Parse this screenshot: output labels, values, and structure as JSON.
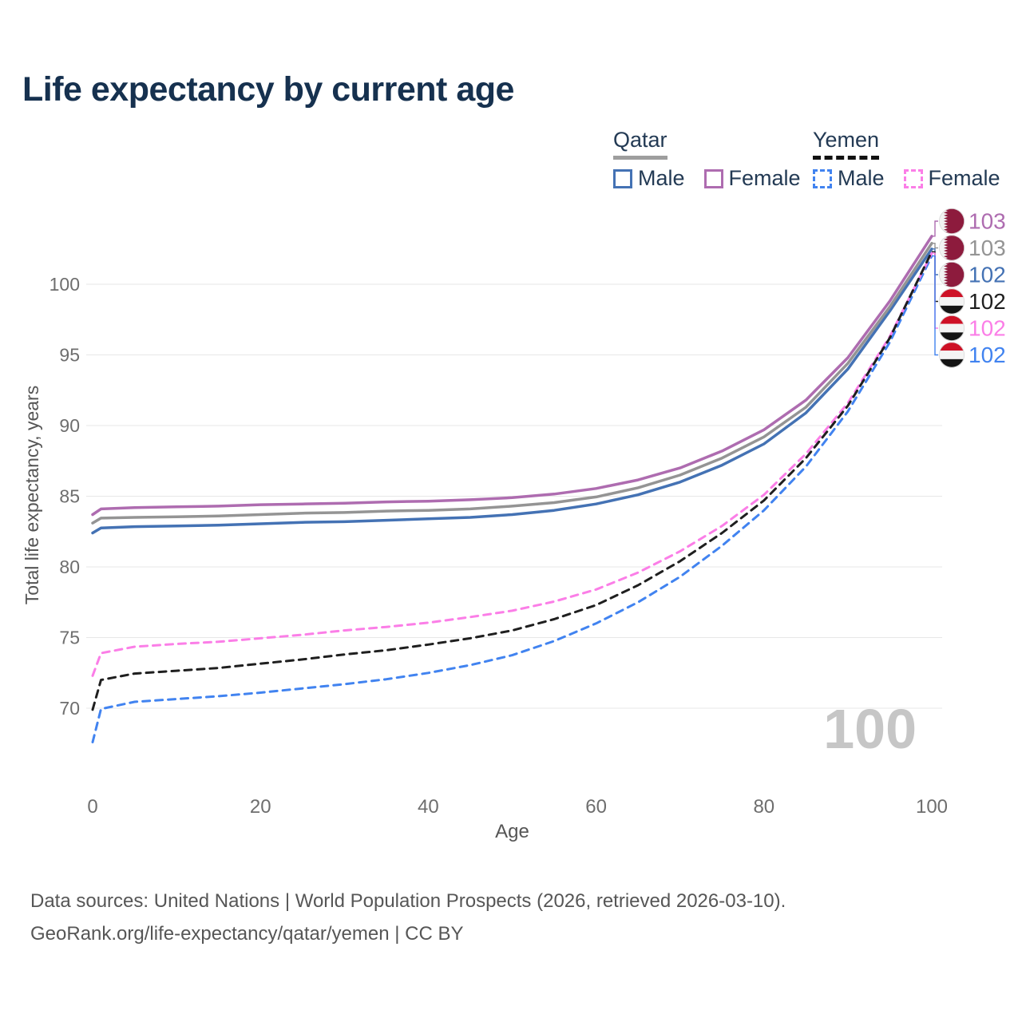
{
  "title": "Life expectancy by current age",
  "watermark": "100",
  "legend": {
    "groups": [
      {
        "country": "Qatar",
        "underline_color": "#9e9e9e",
        "style": "solid",
        "items": [
          {
            "label": "Male"
          },
          {
            "label": "Female"
          }
        ]
      },
      {
        "country": "Yemen",
        "underline_color": "#111111",
        "style": "dashed",
        "items": [
          {
            "label": "Male"
          },
          {
            "label": "Female"
          }
        ]
      }
    ]
  },
  "footer": {
    "line1": "Data sources: United Nations | World Population Prospects (2026, retrieved 2026-03-10).",
    "line2": "GeoRank.org/life-expectancy/qatar/yemen | CC BY"
  },
  "chart_data": {
    "type": "line",
    "title": "Life expectancy by current age",
    "xlabel": "Age",
    "ylabel": "Total life expectancy, years",
    "xlim": [
      0,
      100
    ],
    "ylim": [
      66,
      104
    ],
    "xticks": [
      0,
      20,
      40,
      60,
      80,
      100
    ],
    "yticks": [
      70,
      75,
      80,
      85,
      90,
      95,
      100
    ],
    "grid": true,
    "legend_position": "top-right",
    "x": [
      0,
      1,
      5,
      10,
      15,
      20,
      25,
      30,
      35,
      40,
      45,
      50,
      55,
      60,
      65,
      70,
      75,
      80,
      85,
      90,
      95,
      100
    ],
    "series": [
      {
        "name": "Qatar Male",
        "country": "Qatar",
        "sex": "male",
        "color": "#4472b4",
        "dash": false,
        "values": [
          82.4,
          82.75,
          82.85,
          82.9,
          82.95,
          83.05,
          83.15,
          83.2,
          83.3,
          83.4,
          83.5,
          83.7,
          84.0,
          84.45,
          85.1,
          86.0,
          87.2,
          88.7,
          90.9,
          94.0,
          98.1,
          102.5
        ]
      },
      {
        "name": "Qatar Female",
        "country": "Qatar",
        "sex": "female",
        "color": "#ae6cb0",
        "dash": false,
        "values": [
          83.7,
          84.1,
          84.2,
          84.25,
          84.3,
          84.4,
          84.45,
          84.5,
          84.6,
          84.65,
          84.75,
          84.9,
          85.15,
          85.55,
          86.15,
          87.0,
          88.2,
          89.7,
          91.8,
          94.8,
          98.8,
          103.4
        ]
      },
      {
        "name": "Qatar",
        "country": "Qatar",
        "sex": "all",
        "color": "#949494",
        "dash": false,
        "values": [
          83.1,
          83.45,
          83.5,
          83.55,
          83.6,
          83.7,
          83.8,
          83.85,
          83.95,
          84.0,
          84.1,
          84.3,
          84.55,
          84.95,
          85.6,
          86.5,
          87.7,
          89.2,
          91.3,
          94.4,
          98.4,
          102.9
        ]
      },
      {
        "name": "Yemen Male",
        "country": "Yemen",
        "sex": "male",
        "color": "#4183f0",
        "dash": true,
        "values": [
          67.6,
          69.95,
          70.45,
          70.65,
          70.85,
          71.1,
          71.4,
          71.7,
          72.05,
          72.5,
          73.05,
          73.75,
          74.75,
          76.0,
          77.5,
          79.3,
          81.5,
          84.0,
          87.1,
          91.0,
          95.9,
          102.0
        ]
      },
      {
        "name": "Yemen Female",
        "country": "Yemen",
        "sex": "female",
        "color": "#fb7ee7",
        "dash": true,
        "values": [
          72.3,
          73.9,
          74.35,
          74.55,
          74.7,
          74.95,
          75.2,
          75.5,
          75.75,
          76.05,
          76.45,
          76.9,
          77.55,
          78.4,
          79.6,
          81.1,
          82.9,
          85.1,
          88.0,
          91.6,
          96.3,
          102.2
        ]
      },
      {
        "name": "Yemen",
        "country": "Yemen",
        "sex": "all",
        "color": "#1f1f1f",
        "dash": true,
        "values": [
          69.9,
          72.0,
          72.45,
          72.65,
          72.85,
          73.15,
          73.45,
          73.8,
          74.1,
          74.5,
          74.95,
          75.5,
          76.3,
          77.3,
          78.7,
          80.4,
          82.4,
          84.7,
          87.7,
          91.4,
          96.2,
          102.3
        ]
      }
    ],
    "end_labels": [
      {
        "value": "103",
        "series_index": 1,
        "flag": "qatar"
      },
      {
        "value": "103",
        "series_index": 2,
        "flag": "qatar"
      },
      {
        "value": "102",
        "series_index": 0,
        "flag": "qatar"
      },
      {
        "value": "102",
        "series_index": 5,
        "flag": "yemen"
      },
      {
        "value": "102",
        "series_index": 4,
        "flag": "yemen"
      },
      {
        "value": "102",
        "series_index": 3,
        "flag": "yemen"
      }
    ]
  }
}
